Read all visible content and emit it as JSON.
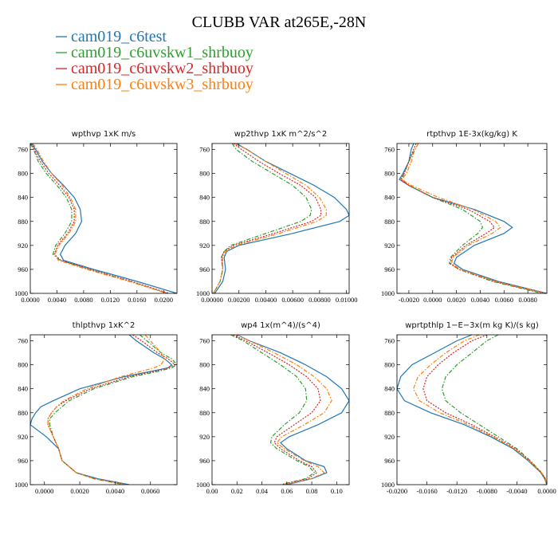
{
  "title": "CLUBB VAR at265E,-28N",
  "colors": {
    "cam019_c6test": "#1f77b4",
    "cam019_c6uvskw1_shrbuoy": "#2ca02c",
    "cam019_c6uvskw2_shrbuoy": "#d62728",
    "cam019_c6uvskw3_shrbuoy": "#ff7f0e"
  },
  "legend": [
    {
      "name": "cam019_c6test",
      "color": "#1f77b4",
      "dash": "solid"
    },
    {
      "name": "cam019_c6uvskw1_shrbuoy",
      "color": "#2ca02c",
      "dash": "dashdot"
    },
    {
      "name": "cam019_c6uvskw2_shrbuoy",
      "color": "#d62728",
      "dash": "dotted"
    },
    {
      "name": "cam019_c6uvskw3_shrbuoy",
      "color": "#ff7f0e",
      "dash": "dashdot"
    }
  ],
  "chart_data": [
    {
      "type": "line",
      "title": "wpthvp   1xK m/s",
      "xlim": [
        0.0,
        0.022
      ],
      "ylim": [
        1000,
        750
      ],
      "xticks": [
        0.0,
        0.004,
        0.008,
        0.012,
        0.016,
        0.02
      ],
      "xtick_labels": [
        "0.0000",
        "0.0040",
        "0.0080",
        "0.0120",
        "0.0160",
        "0.0200"
      ],
      "yticks": [
        760,
        800,
        840,
        880,
        920,
        960,
        1000
      ],
      "ytick_labels": [
        "760",
        "800",
        "840",
        "880",
        "920",
        "960",
        "1000"
      ],
      "y": [
        750,
        760,
        780,
        800,
        820,
        840,
        860,
        880,
        900,
        920,
        935,
        945,
        960,
        980,
        1000
      ],
      "series": [
        {
          "name": "cam019_c6test",
          "values": [
            0.0002,
            0.0008,
            0.0018,
            0.0032,
            0.005,
            0.0066,
            0.0075,
            0.0077,
            0.0068,
            0.0052,
            0.0045,
            0.005,
            0.0095,
            0.016,
            0.022
          ]
        },
        {
          "name": "cam019_c6uvskw1_shrbuoy",
          "values": [
            0.0,
            0.0005,
            0.0012,
            0.0024,
            0.004,
            0.0054,
            0.0062,
            0.0062,
            0.0052,
            0.0038,
            0.0034,
            0.0045,
            0.0088,
            0.015,
            0.0205
          ]
        },
        {
          "name": "cam019_c6uvskw2_shrbuoy",
          "values": [
            0.0001,
            0.0006,
            0.0015,
            0.0028,
            0.0044,
            0.0058,
            0.0066,
            0.0066,
            0.0056,
            0.0041,
            0.0036,
            0.0046,
            0.009,
            0.0152,
            0.0208
          ]
        },
        {
          "name": "cam019_c6uvskw3_shrbuoy",
          "values": [
            0.0004,
            0.001,
            0.002,
            0.0032,
            0.0048,
            0.006,
            0.0068,
            0.0068,
            0.0058,
            0.0043,
            0.0037,
            0.0042,
            0.0085,
            0.0148,
            0.0205
          ]
        }
      ]
    },
    {
      "type": "line",
      "title": "wp2thvp   1xK m^2/s^2",
      "xlim": [
        0.0,
        0.0102
      ],
      "ylim": [
        1000,
        750
      ],
      "xticks": [
        0.0,
        0.002,
        0.004,
        0.006,
        0.008,
        0.01
      ],
      "xtick_labels": [
        "0.00000",
        "0.00200",
        "0.00400",
        "0.00600",
        "0.00800",
        "0.01000"
      ],
      "yticks": [
        760,
        800,
        840,
        880,
        920,
        960,
        1000
      ],
      "ytick_labels": [
        "760",
        "800",
        "840",
        "880",
        "920",
        "960",
        "1000"
      ],
      "y": [
        750,
        760,
        780,
        800,
        820,
        840,
        860,
        870,
        880,
        900,
        920,
        930,
        940,
        960,
        980,
        1000
      ],
      "series": [
        {
          "name": "cam019_c6test",
          "values": [
            0.0018,
            0.0026,
            0.004,
            0.0058,
            0.0076,
            0.0091,
            0.01,
            0.0102,
            0.0095,
            0.006,
            0.002,
            0.0011,
            0.0009,
            0.001,
            0.0008,
            0.0002
          ]
        },
        {
          "name": "cam019_c6uvskw1_shrbuoy",
          "values": [
            0.0015,
            0.0018,
            0.003,
            0.0045,
            0.006,
            0.007,
            0.0074,
            0.0073,
            0.0066,
            0.004,
            0.0014,
            0.0009,
            0.0007,
            0.0008,
            0.0006,
            0.0001
          ]
        },
        {
          "name": "cam019_c6uvskw2_shrbuoy",
          "values": [
            0.0016,
            0.0022,
            0.0035,
            0.005,
            0.0066,
            0.0077,
            0.0081,
            0.0081,
            0.0074,
            0.0046,
            0.0016,
            0.0009,
            0.0007,
            0.0008,
            0.0006,
            0.0001
          ]
        },
        {
          "name": "cam019_c6uvskw3_shrbuoy",
          "values": [
            0.0017,
            0.0026,
            0.004,
            0.0055,
            0.007,
            0.008,
            0.0085,
            0.0085,
            0.0078,
            0.005,
            0.0018,
            0.001,
            0.0008,
            0.0008,
            0.0006,
            0.0001
          ]
        }
      ]
    },
    {
      "type": "line",
      "title": "rtpthvp   1E-3x(kg/kg) K",
      "xlim": [
        -0.003,
        0.0096
      ],
      "ylim": [
        1000,
        750
      ],
      "xticks": [
        -0.002,
        0.0,
        0.002,
        0.004,
        0.006,
        0.008
      ],
      "xtick_labels": [
        "-0.0020",
        "0.0000",
        "0.0020",
        "0.0040",
        "0.0060",
        "0.0080"
      ],
      "yticks": [
        760,
        800,
        840,
        880,
        920,
        960,
        1000
      ],
      "ytick_labels": [
        "760",
        "800",
        "840",
        "880",
        "920",
        "960",
        "1000"
      ],
      "y": [
        750,
        760,
        780,
        800,
        810,
        820,
        840,
        860,
        880,
        890,
        900,
        920,
        940,
        950,
        960,
        980,
        1000
      ],
      "series": [
        {
          "name": "cam019_c6test",
          "values": [
            -0.0016,
            -0.0018,
            -0.002,
            -0.0025,
            -0.0028,
            -0.002,
            0.0,
            0.0035,
            0.006,
            0.0067,
            0.006,
            0.0035,
            0.002,
            0.0018,
            0.0025,
            0.0055,
            0.0096
          ]
        },
        {
          "name": "cam019_c6uvskw1_shrbuoy",
          "values": [
            -0.0012,
            -0.0015,
            -0.002,
            -0.0024,
            -0.0026,
            -0.002,
            0.0,
            0.0025,
            0.004,
            0.0042,
            0.0038,
            0.0025,
            0.0015,
            0.0014,
            0.0022,
            0.005,
            0.0092
          ]
        },
        {
          "name": "cam019_c6uvskw2_shrbuoy",
          "values": [
            -0.0014,
            -0.0016,
            -0.002,
            -0.0024,
            -0.0027,
            -0.002,
            0.0,
            0.003,
            0.0048,
            0.0052,
            0.0045,
            0.0028,
            0.0016,
            0.0015,
            0.0022,
            0.0052,
            0.0094
          ]
        },
        {
          "name": "cam019_c6uvskw3_shrbuoy",
          "values": [
            -0.0012,
            -0.0015,
            -0.0018,
            -0.0022,
            -0.0026,
            -0.0018,
            0.0005,
            0.0034,
            0.0053,
            0.0057,
            0.005,
            0.003,
            0.0017,
            0.0016,
            0.0023,
            0.0053,
            0.0095
          ]
        }
      ]
    },
    {
      "type": "line",
      "title": "thlpthvp   1xK^2",
      "xlim": [
        -0.0008,
        0.0075
      ],
      "ylim": [
        1000,
        750
      ],
      "xticks": [
        0.0,
        0.002,
        0.004,
        0.006
      ],
      "xtick_labels": [
        "0.0000",
        "0.0020",
        "0.0040",
        "0.0060"
      ],
      "yticks": [
        760,
        800,
        840,
        880,
        920,
        960,
        1000
      ],
      "ytick_labels": [
        "760",
        "800",
        "840",
        "880",
        "920",
        "960",
        "1000"
      ],
      "y": [
        750,
        760,
        780,
        790,
        800,
        805,
        810,
        820,
        840,
        860,
        870,
        880,
        890,
        900,
        920,
        940,
        960,
        980,
        990,
        1000
      ],
      "series": [
        {
          "name": "cam019_c6test",
          "values": [
            0.0048,
            0.0052,
            0.0062,
            0.0068,
            0.0072,
            0.007,
            0.0062,
            0.0045,
            0.002,
            0.0005,
            -0.0002,
            -0.0005,
            -0.0007,
            -0.0008,
            0.0001,
            0.0008,
            0.001,
            0.0018,
            0.003,
            0.0048
          ]
        },
        {
          "name": "cam019_c6uvskw1_shrbuoy",
          "values": [
            0.0054,
            0.0058,
            0.0066,
            0.0072,
            0.0075,
            0.0072,
            0.0066,
            0.005,
            0.0028,
            0.0014,
            0.001,
            0.0006,
            0.0003,
            0.0003,
            0.0005,
            0.0008,
            0.001,
            0.0018,
            0.0028,
            0.0045
          ]
        },
        {
          "name": "cam019_c6uvskw2_shrbuoy",
          "values": [
            0.005,
            0.0055,
            0.0064,
            0.007,
            0.0074,
            0.007,
            0.0064,
            0.0048,
            0.0026,
            0.0012,
            0.0007,
            0.0004,
            0.0002,
            0.0002,
            0.0005,
            0.0008,
            0.001,
            0.0018,
            0.0028,
            0.0046
          ]
        },
        {
          "name": "cam019_c6uvskw3_shrbuoy",
          "values": [
            0.0057,
            0.006,
            0.0066,
            0.0068,
            0.0066,
            0.0062,
            0.0056,
            0.0043,
            0.0024,
            0.0011,
            0.0007,
            0.0004,
            0.0002,
            0.0002,
            0.0005,
            0.0008,
            0.001,
            0.0018,
            0.0028,
            0.0046
          ]
        }
      ]
    },
    {
      "type": "line",
      "title": "wp4   1x(m^4)/(s^4)",
      "xlim": [
        0.0,
        0.11
      ],
      "ylim": [
        1000,
        750
      ],
      "xticks": [
        0.0,
        0.02,
        0.04,
        0.06,
        0.08,
        0.1
      ],
      "xtick_labels": [
        "0.00",
        "0.02",
        "0.04",
        "0.06",
        "0.08",
        "0.10"
      ],
      "yticks": [
        760,
        800,
        840,
        880,
        920,
        960,
        1000
      ],
      "ytick_labels": [
        "760",
        "800",
        "840",
        "880",
        "920",
        "960",
        "1000"
      ],
      "y": [
        750,
        760,
        780,
        800,
        820,
        840,
        860,
        880,
        900,
        920,
        930,
        940,
        960,
        970,
        980,
        990,
        1000
      ],
      "series": [
        {
          "name": "cam019_c6test",
          "values": [
            0.02,
            0.03,
            0.055,
            0.075,
            0.092,
            0.104,
            0.11,
            0.104,
            0.085,
            0.062,
            0.055,
            0.06,
            0.075,
            0.09,
            0.092,
            0.08,
            0.06
          ]
        },
        {
          "name": "cam019_c6uvskw1_shrbuoy",
          "values": [
            0.015,
            0.025,
            0.04,
            0.055,
            0.068,
            0.075,
            0.076,
            0.07,
            0.058,
            0.048,
            0.047,
            0.052,
            0.068,
            0.078,
            0.082,
            0.075,
            0.055
          ]
        },
        {
          "name": "cam019_c6uvskw2_shrbuoy",
          "values": [
            0.017,
            0.027,
            0.045,
            0.062,
            0.076,
            0.085,
            0.087,
            0.08,
            0.066,
            0.052,
            0.05,
            0.055,
            0.07,
            0.08,
            0.084,
            0.077,
            0.056
          ]
        },
        {
          "name": "cam019_c6uvskw3_shrbuoy",
          "values": [
            0.02,
            0.03,
            0.05,
            0.068,
            0.082,
            0.092,
            0.096,
            0.09,
            0.074,
            0.056,
            0.052,
            0.058,
            0.074,
            0.085,
            0.09,
            0.08,
            0.058
          ]
        }
      ]
    },
    {
      "type": "line",
      "title": "wprtpthlp   1−E−3x(m kg K)/(s kg)",
      "xlim": [
        -0.02,
        0.0
      ],
      "ylim": [
        1000,
        750
      ],
      "xticks": [
        -0.02,
        -0.016,
        -0.012,
        -0.008,
        -0.004,
        0.0
      ],
      "xtick_labels": [
        "-0.0200",
        "-0.0160",
        "-0.0120",
        "-0.0080",
        "-0.0040",
        "0.0000"
      ],
      "yticks": [
        760,
        800,
        840,
        880,
        920,
        960,
        1000
      ],
      "ytick_labels": [
        "760",
        "800",
        "840",
        "880",
        "920",
        "960",
        "1000"
      ],
      "y": [
        750,
        760,
        780,
        800,
        820,
        840,
        860,
        880,
        900,
        920,
        940,
        960,
        980,
        990,
        1000
      ],
      "series": [
        {
          "name": "cam019_c6test",
          "values": [
            -0.01,
            -0.012,
            -0.015,
            -0.018,
            -0.0195,
            -0.02,
            -0.019,
            -0.0155,
            -0.011,
            -0.0075,
            -0.0045,
            -0.0025,
            -0.0008,
            -0.0003,
            0.0
          ]
        },
        {
          "name": "cam019_c6uvskw1_shrbuoy",
          "values": [
            -0.0065,
            -0.008,
            -0.01,
            -0.012,
            -0.0135,
            -0.014,
            -0.0135,
            -0.0115,
            -0.009,
            -0.0065,
            -0.004,
            -0.0022,
            -0.0007,
            -0.0002,
            0.0
          ]
        },
        {
          "name": "cam019_c6uvskw2_shrbuoy",
          "values": [
            -0.008,
            -0.01,
            -0.0125,
            -0.0145,
            -0.016,
            -0.0165,
            -0.016,
            -0.0135,
            -0.01,
            -0.007,
            -0.0042,
            -0.0023,
            -0.0007,
            -0.0002,
            0.0
          ]
        },
        {
          "name": "cam019_c6uvskw3_shrbuoy",
          "values": [
            -0.009,
            -0.011,
            -0.0135,
            -0.0155,
            -0.0172,
            -0.0178,
            -0.017,
            -0.0143,
            -0.0105,
            -0.0072,
            -0.0043,
            -0.0024,
            -0.0007,
            -0.0002,
            0.0
          ]
        }
      ]
    }
  ]
}
